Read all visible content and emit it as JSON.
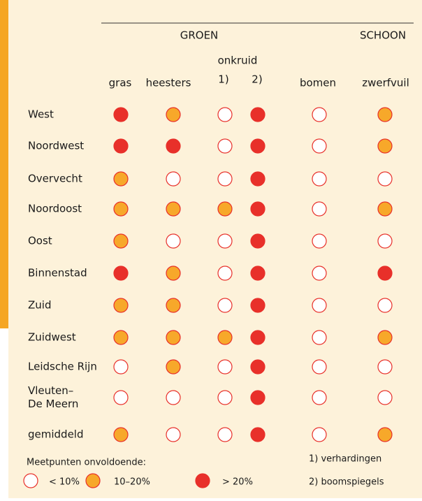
{
  "header": {
    "group_groen": "GROEN",
    "group_schoon": "SCHOON",
    "subgroup": "onkruid"
  },
  "columns": [
    "gras",
    "heesters",
    "1)",
    "2)",
    "bomen",
    "zwerfvuil"
  ],
  "legend": {
    "title": "Meetpunten onvoldoende:",
    "items": [
      {
        "label": "< 10%",
        "color": "#ffffff"
      },
      {
        "label": "10–20%",
        "color": "#f7a82a"
      },
      {
        "label": "> 20%",
        "color": "#e8302a"
      }
    ]
  },
  "rows": [
    {
      "label": [
        "West"
      ],
      "cells": [
        2,
        1,
        0,
        2,
        0,
        1
      ]
    },
    {
      "label": [
        "Noordwest"
      ],
      "cells": [
        2,
        2,
        0,
        2,
        0,
        1
      ]
    },
    {
      "label": [
        "Overvecht"
      ],
      "cells": [
        1,
        0,
        0,
        2,
        0,
        0
      ]
    },
    {
      "label": [
        "Noordoost"
      ],
      "cells": [
        1,
        1,
        1,
        2,
        0,
        1
      ]
    },
    {
      "label": [
        "Oost"
      ],
      "cells": [
        1,
        0,
        0,
        2,
        0,
        0
      ]
    },
    {
      "label": [
        "Binnenstad"
      ],
      "cells": [
        2,
        1,
        0,
        2,
        0,
        2
      ]
    },
    {
      "label": [
        "Zuid"
      ],
      "cells": [
        1,
        1,
        0,
        2,
        0,
        0
      ]
    },
    {
      "label": [
        "Zuidwest"
      ],
      "cells": [
        1,
        1,
        1,
        2,
        0,
        1
      ]
    },
    {
      "label": [
        "Leidsche Rijn"
      ],
      "cells": [
        0,
        1,
        0,
        2,
        0,
        0
      ]
    },
    {
      "label": [
        "Vleuten–",
        "De Meern"
      ],
      "cells": [
        0,
        0,
        0,
        2,
        0,
        0
      ]
    },
    {
      "label": [
        "gemiddeld"
      ],
      "cells": [
        1,
        0,
        0,
        2,
        0,
        1
      ]
    }
  ],
  "notes": [
    "1) verhardingen",
    "2) boomspiegels"
  ]
}
